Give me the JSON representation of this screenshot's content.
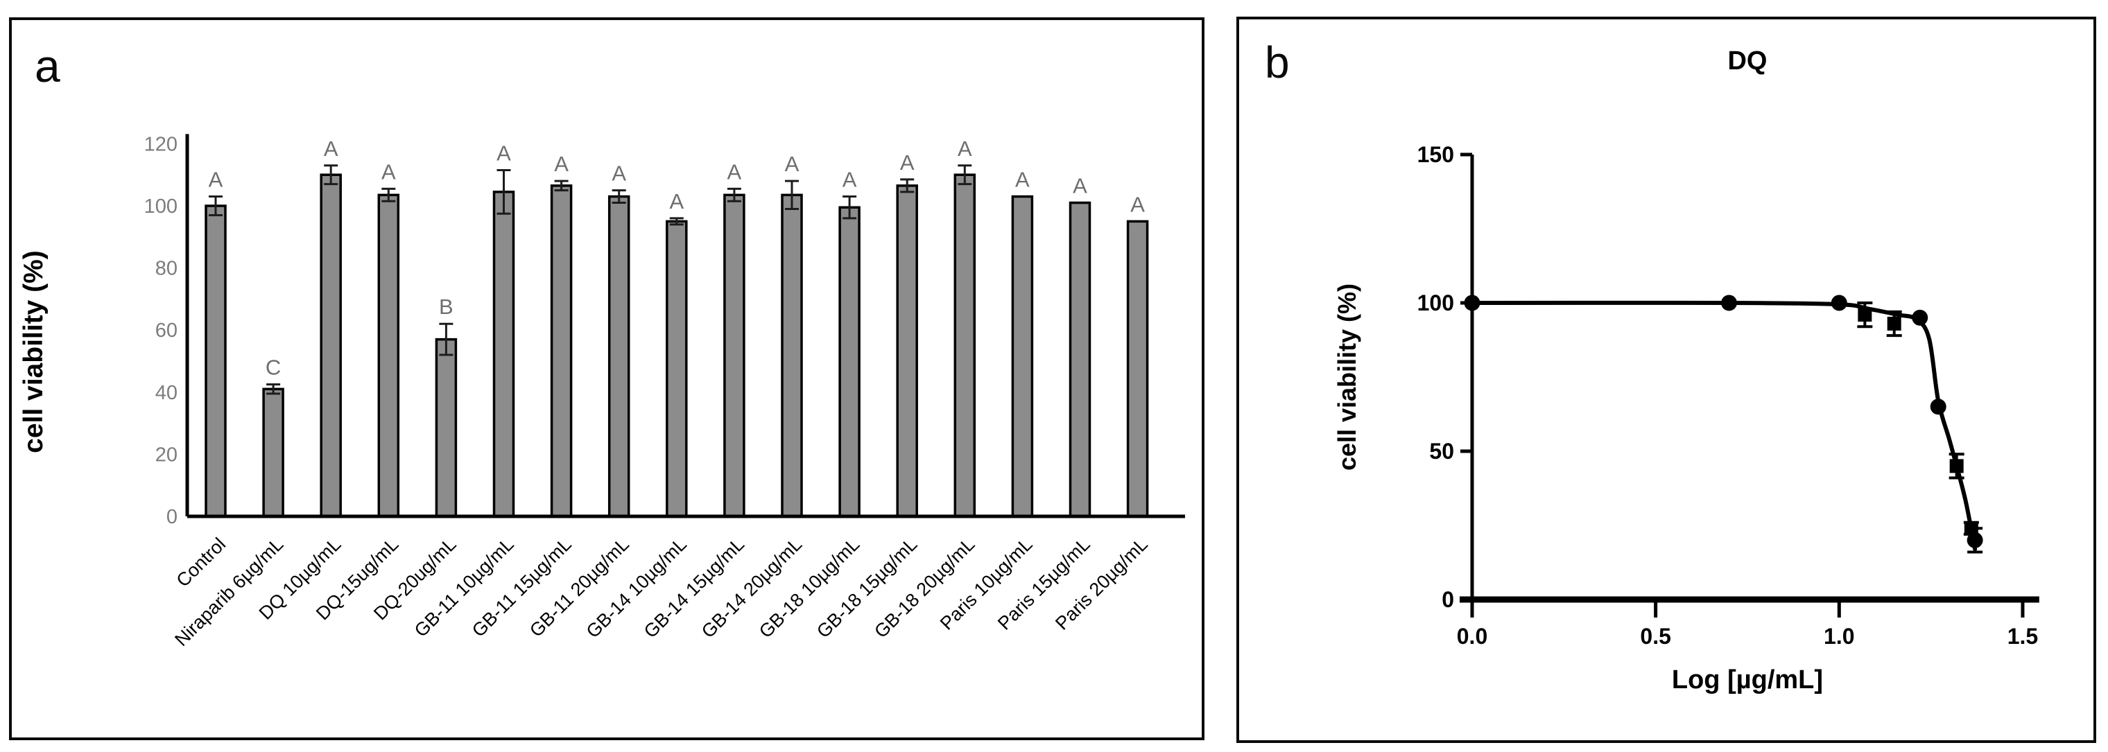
{
  "figure": {
    "background": "#ffffff",
    "panel_a_letter": "a",
    "panel_b_letter": "b"
  },
  "chart_data": [
    {
      "id": "panel_a",
      "type": "bar",
      "panel_letter": "a",
      "title": "",
      "xlabel": "",
      "ylabel": "cell viability (%)",
      "ylim": [
        0,
        120
      ],
      "yticks": [
        0,
        20,
        40,
        60,
        80,
        100,
        120
      ],
      "grid": false,
      "legend": null,
      "bar_color": "#8c8c8c",
      "bar_border_color": "#000000",
      "error_bar_color": "#1c1c1c",
      "axis_color": "#000000",
      "ytick_label_color": "#7c7c7c",
      "letter_color": "#6e6e6e",
      "categories": [
        "Control",
        "Niraparib 6µg/mL",
        "DQ 10µg/mL",
        "DQ-15ug/mL",
        "DQ-20ug/mL",
        "GB-11 10µg/mL",
        "GB-11 15µg/mL",
        "GB-11 20µg/mL",
        "GB-14 10µg/mL",
        "GB-14 15µg/mL",
        "GB-14 20µg/mL",
        "GB-18 10µg/mL",
        "GB-18 15µg/mL",
        "GB-18 20µg/mL",
        "Paris 10µg/mL",
        "Paris 15µg/mL",
        "Paris 20µg/mL"
      ],
      "values": [
        100,
        41,
        110,
        103.5,
        57,
        104.5,
        106.5,
        103,
        95,
        103.5,
        103.5,
        99.5,
        106.5,
        110,
        103,
        101,
        95
      ],
      "errors": [
        3,
        1.5,
        3,
        2,
        5,
        7,
        1.5,
        2,
        1,
        2,
        4.5,
        3.5,
        2,
        3,
        0,
        0,
        0
      ],
      "sig_letters": [
        "A",
        "C",
        "A",
        "A",
        "B",
        "A",
        "A",
        "A",
        "A",
        "A",
        "A",
        "A",
        "A",
        "A",
        "A",
        "A",
        "A"
      ]
    },
    {
      "id": "panel_b",
      "type": "scatter",
      "panel_letter": "b",
      "title": "DQ",
      "xlabel": "Log [µg/mL]",
      "ylabel": "cell viability (%)",
      "xlim": [
        0,
        1.55
      ],
      "ylim": [
        0,
        150
      ],
      "xticks": [
        "0.0",
        "0.5",
        "1.0",
        "1.5"
      ],
      "xtick_values": [
        0.0,
        0.5,
        1.0,
        1.5
      ],
      "yticks": [
        0,
        50,
        100,
        150
      ],
      "grid": false,
      "legend": null,
      "color": "#000000",
      "points": [
        {
          "x": 0.0,
          "y": 100,
          "marker": "circle",
          "err": 0
        },
        {
          "x": 0.7,
          "y": 100,
          "marker": "circle",
          "err": 0
        },
        {
          "x": 1.0,
          "y": 100,
          "marker": "circle",
          "err": 0
        },
        {
          "x": 1.07,
          "y": 96,
          "marker": "square",
          "err": 4
        },
        {
          "x": 1.15,
          "y": 93,
          "marker": "square",
          "err": 4
        },
        {
          "x": 1.22,
          "y": 95,
          "marker": "circle",
          "err": 0
        },
        {
          "x": 1.27,
          "y": 65,
          "marker": "circle",
          "err": 0
        },
        {
          "x": 1.32,
          "y": 45,
          "marker": "square",
          "err": 4
        },
        {
          "x": 1.36,
          "y": 24,
          "marker": "square",
          "err": 2
        },
        {
          "x": 1.37,
          "y": 20,
          "marker": "circle",
          "err": 4
        }
      ],
      "curve": [
        [
          0.0,
          100
        ],
        [
          0.7,
          100
        ],
        [
          1.0,
          99.5
        ],
        [
          1.08,
          98
        ],
        [
          1.16,
          96
        ],
        [
          1.21,
          94.5
        ],
        [
          1.245,
          88
        ],
        [
          1.27,
          67
        ],
        [
          1.3,
          54
        ],
        [
          1.32,
          45
        ],
        [
          1.345,
          33
        ],
        [
          1.37,
          17
        ]
      ]
    }
  ]
}
